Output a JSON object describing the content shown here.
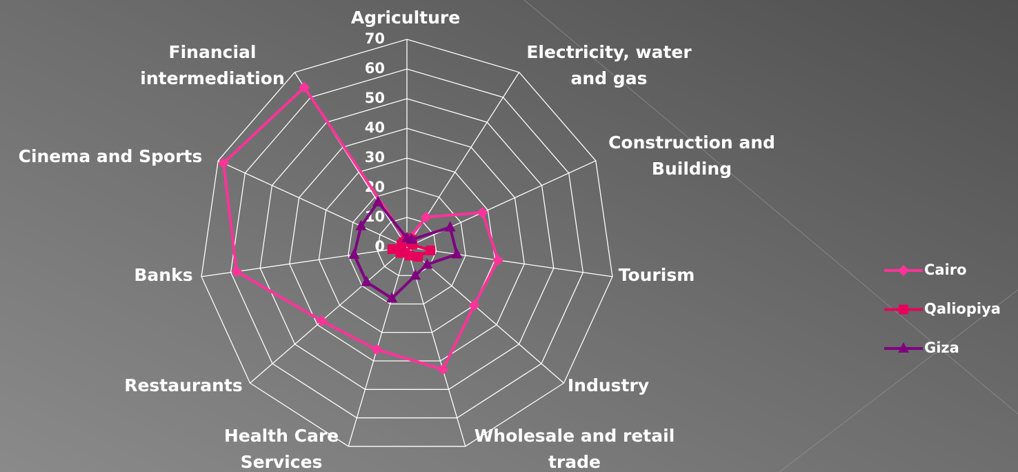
{
  "chart_data": {
    "type": "radar",
    "categories": [
      "Agriculture",
      "Electricity, water and gas",
      "Construction and Building",
      "Tourism",
      "Industry",
      "Wholesale and retail trade",
      "Health Care Services",
      "Restaurants",
      "Banks",
      "Cinema and Sports",
      "Financial intermediation"
    ],
    "series": [
      {
        "name": "Cairo",
        "color": "#ff3399",
        "marker": "diamond",
        "values": [
          2,
          12,
          28,
          31,
          30,
          43,
          36,
          38,
          58,
          68,
          64
        ]
      },
      {
        "name": "Qaliopiya",
        "color": "#e6005c",
        "marker": "square",
        "values": [
          3,
          3,
          2,
          8,
          5,
          3,
          2,
          3,
          5,
          2,
          2
        ]
      },
      {
        "name": "Giza",
        "color": "#800080",
        "marker": "triangle",
        "values": [
          3,
          3,
          16,
          17,
          9,
          10,
          18,
          18,
          18,
          17,
          18
        ]
      }
    ],
    "ylim": [
      0,
      70
    ],
    "yticks": [
      0,
      10,
      20,
      30,
      40,
      50,
      60,
      70
    ],
    "grid": true,
    "legend": "right"
  }
}
